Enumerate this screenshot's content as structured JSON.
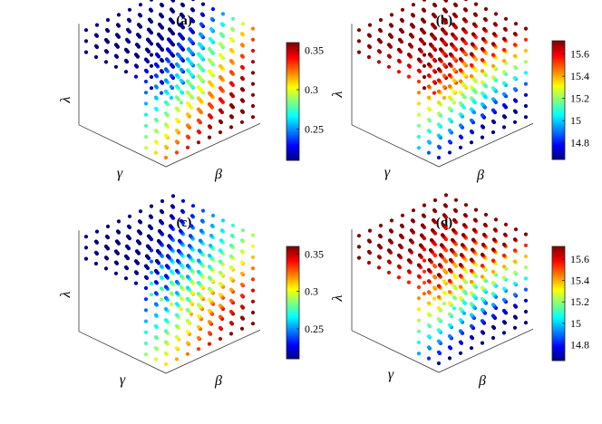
{
  "chart_data": [
    {
      "type": "scatter",
      "title": "(a)",
      "xlabel": "β",
      "ylabel": "γ",
      "zlabel": "λ",
      "grid_size": 9,
      "colormap": "jet",
      "colorbar": {
        "min": 0.21,
        "max": 0.36,
        "ticks": [
          0.25,
          0.3,
          0.35
        ],
        "tick_labels": [
          "0.25",
          "0.3",
          "0.35"
        ]
      },
      "value_range": [
        0.21,
        0.36
      ],
      "trend": "low on top and back faces; high toward the front-lower corner"
    },
    {
      "type": "scatter",
      "title": "(b)",
      "xlabel": "β",
      "ylabel": "γ",
      "zlabel": "λ",
      "grid_size": 9,
      "colormap": "jet",
      "colorbar": {
        "min": 14.65,
        "max": 15.72,
        "ticks": [
          14.8,
          15,
          15.2,
          15.4,
          15.6
        ],
        "tick_labels": [
          "14.8",
          "15",
          "15.2",
          "15.4",
          "15.6"
        ]
      },
      "value_range": [
        14.65,
        15.72
      ],
      "trend": "high on top and upper faces; low toward the bottom front edge"
    },
    {
      "type": "scatter",
      "title": "(c)",
      "xlabel": "β",
      "ylabel": "γ",
      "zlabel": "λ",
      "grid_size": 9,
      "colormap": "jet",
      "colorbar": {
        "min": 0.21,
        "max": 0.36,
        "ticks": [
          0.25,
          0.3,
          0.35
        ],
        "tick_labels": [
          "0.25",
          "0.3",
          "0.35"
        ]
      },
      "value_range": [
        0.21,
        0.36
      ],
      "trend": "low on top face; increasing toward the bottom front corner"
    },
    {
      "type": "scatter",
      "title": "(d)",
      "xlabel": "β",
      "ylabel": "γ",
      "zlabel": "λ",
      "grid_size": 9,
      "colormap": "jet",
      "colorbar": {
        "min": 14.65,
        "max": 15.72,
        "ticks": [
          14.8,
          15,
          15.2,
          15.4,
          15.6
        ],
        "tick_labels": [
          "14.8",
          "15",
          "15.2",
          "15.4",
          "15.6"
        ]
      },
      "value_range": [
        14.65,
        15.72
      ],
      "trend": "high on top and upper faces; low toward the bottom front edge"
    }
  ]
}
